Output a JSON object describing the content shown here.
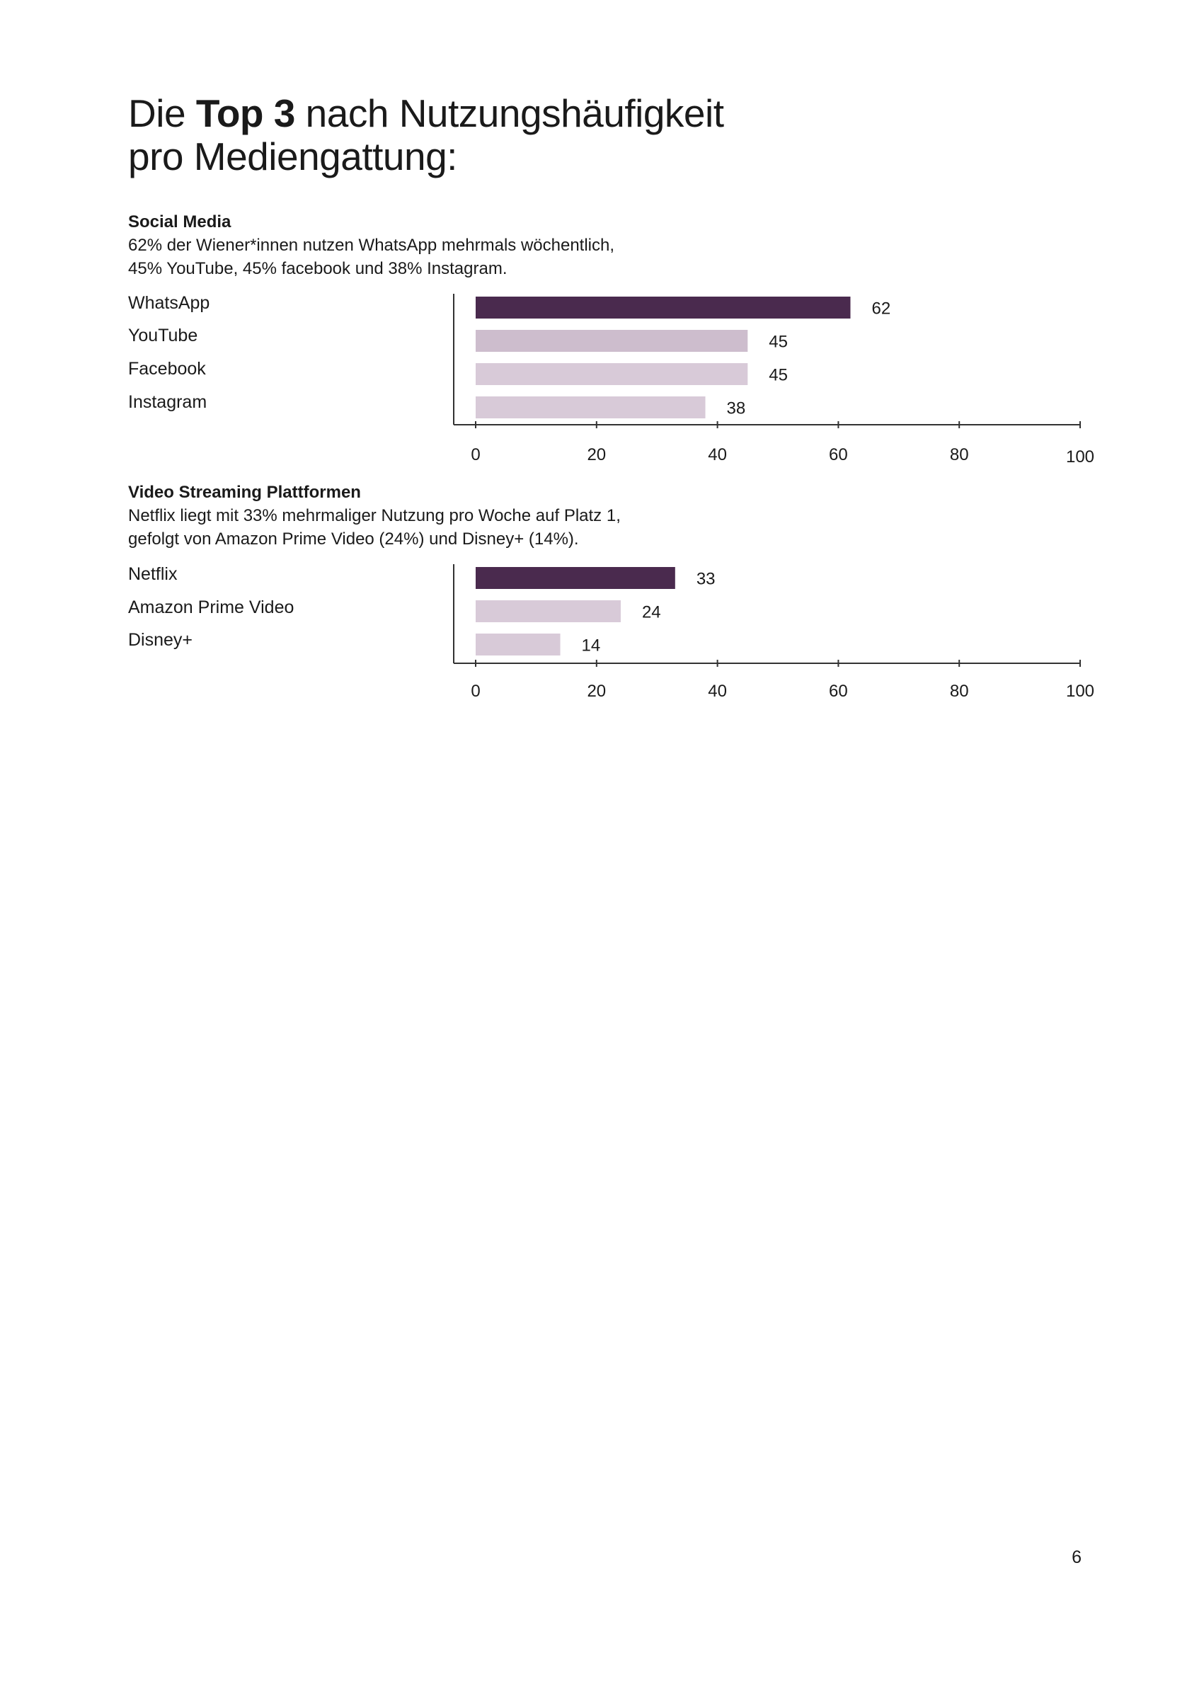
{
  "page": {
    "title_prefix": "Die ",
    "title_bold": "Top 3",
    "title_suffix_line1": " nach Nutzungshäufigkeit",
    "title_line2": "pro Mediengattung:",
    "page_number": "6"
  },
  "colors": {
    "highlight": "#4a2a4e",
    "bar_mid": "#cdbdcd",
    "bar_light": "#d8cad8",
    "axis": "#333333"
  },
  "sections": [
    {
      "heading": "Social Media",
      "description_line1": "62% der Wiener*innen nutzen WhatsApp mehrmals wöchentlich,",
      "description_line2": "45% YouTube, 45% facebook und 38% Instagram."
    },
    {
      "heading": "Video Streaming Plattformen",
      "description_line1": "Netflix liegt mit 33% mehrmaliger Nutzung pro Woche auf Platz 1,",
      "description_line2": "gefolgt von Amazon Prime Video (24%) und Disney+ (14%)."
    }
  ],
  "chart_data": [
    {
      "type": "bar",
      "orientation": "horizontal",
      "title": "Social Media",
      "categories": [
        "WhatsApp",
        "YouTube",
        "Facebook",
        "Instagram"
      ],
      "values": [
        62,
        45,
        45,
        38
      ],
      "value_labels": [
        "62",
        "45",
        "45",
        "38"
      ],
      "xlim": [
        0,
        100
      ],
      "xticks": [
        0,
        20,
        40,
        60,
        80,
        100
      ],
      "xtick_labels": [
        "0",
        "20",
        "40",
        "60",
        "80",
        "100"
      ],
      "xlabel": "",
      "ylabel": "",
      "grid": false,
      "legend": "none"
    },
    {
      "type": "bar",
      "orientation": "horizontal",
      "title": "Video Streaming Plattformen",
      "categories": [
        "Netflix",
        "Amazon Prime Video",
        "Disney+"
      ],
      "values": [
        33,
        24,
        14
      ],
      "value_labels": [
        "33",
        "24",
        "14"
      ],
      "xlim": [
        0,
        100
      ],
      "xticks": [
        0,
        20,
        40,
        60,
        80,
        100
      ],
      "xtick_labels": [
        "0",
        "20",
        "40",
        "60",
        "80",
        "100"
      ],
      "xlabel": "",
      "ylabel": "",
      "grid": false,
      "legend": "none"
    }
  ]
}
